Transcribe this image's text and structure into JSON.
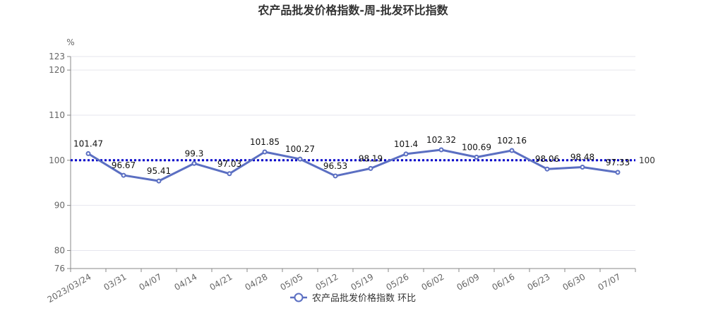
{
  "chart_data": {
    "type": "line",
    "title": "农产品批发价格指数-周-批发环比指数",
    "unit_label": "%",
    "categories": [
      "2023/03/24",
      "03/31",
      "04/07",
      "04/14",
      "04/21",
      "04/28",
      "05/05",
      "05/12",
      "05/19",
      "05/26",
      "06/02",
      "06/09",
      "06/16",
      "06/23",
      "06/30",
      "07/07"
    ],
    "series": [
      {
        "name": "农产品批发价格指数  环比",
        "values": [
          101.47,
          96.67,
          95.41,
          99.3,
          97.03,
          101.85,
          100.27,
          96.53,
          98.19,
          101.4,
          102.32,
          100.69,
          102.16,
          98.06,
          98.48,
          97.33
        ],
        "value_labels": [
          "101.47",
          "96.67",
          "95.41",
          "99.3",
          "97.03",
          "101.85",
          "100.27",
          "96.53",
          "98.19",
          "101.4",
          "102.32",
          "100.69",
          "102.16",
          "98.06",
          "98.48",
          "97.33"
        ],
        "color": "#5b6fc2"
      }
    ],
    "yticks": [
      {
        "value": 76,
        "label": "76"
      },
      {
        "value": 80,
        "label": "80"
      },
      {
        "value": 90,
        "label": "90"
      },
      {
        "value": 100,
        "label": "100"
      },
      {
        "value": 110,
        "label": "110"
      },
      {
        "value": 120,
        "label": "120"
      },
      {
        "value": 123,
        "label": "123"
      }
    ],
    "ylim": [
      76,
      123
    ],
    "reference_line": {
      "value": 100,
      "label": "100",
      "color": "#0000cc"
    },
    "grid": true,
    "legend_position": "bottom-center"
  }
}
